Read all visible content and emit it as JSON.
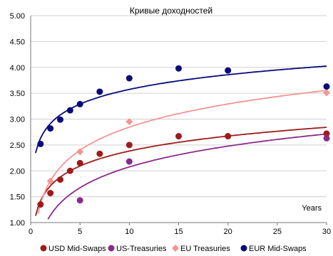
{
  "chart_data": {
    "type": "scatter",
    "title": "Кривые доходностей",
    "xlabel": "Years",
    "ylabel": "",
    "xlim": [
      0,
      30
    ],
    "ylim": [
      1.0,
      5.0
    ],
    "x_ticks": [
      "0",
      "5",
      "10",
      "15",
      "20",
      "25",
      "30"
    ],
    "y_ticks": [
      "1.00",
      "1.50",
      "2.00",
      "2.50",
      "3.00",
      "3.50",
      "4.00",
      "4.50",
      "5.00"
    ],
    "grid": "horizontal",
    "legend_position": "bottom",
    "series": [
      {
        "name": "USD Mid-Swaps",
        "color": "#9e1b1b",
        "marker": "circle",
        "x": [
          1,
          2,
          3,
          4,
          5,
          7,
          10,
          15,
          20,
          30
        ],
        "y": [
          1.35,
          1.57,
          1.83,
          2.0,
          2.15,
          2.33,
          2.5,
          2.67,
          2.67,
          2.72
        ],
        "trend": {
          "type": "log",
          "a": 1.42,
          "b": 0.418
        }
      },
      {
        "name": "US-Treasuries",
        "color": "#8b2a8b",
        "marker": "circle",
        "x": [
          5,
          10,
          30
        ],
        "y": [
          1.43,
          2.18,
          2.63
        ],
        "trend": {
          "type": "log",
          "a": 0.74,
          "b": 0.58
        }
      },
      {
        "name": "EU Treasuries",
        "color": "#f49494",
        "marker": "diamond",
        "x": [
          2,
          5,
          10,
          30
        ],
        "y": [
          1.8,
          2.37,
          2.95,
          3.51
        ],
        "trend": {
          "type": "log",
          "a": 1.36,
          "b": 0.645
        }
      },
      {
        "name": "EUR Mid-Swaps",
        "color": "#0a0a7a",
        "marker": "circle",
        "x": [
          1,
          2,
          3,
          4,
          5,
          7,
          10,
          15,
          20,
          30
        ],
        "y": [
          2.52,
          2.82,
          2.99,
          3.17,
          3.29,
          3.53,
          3.79,
          3.98,
          3.94,
          3.63
        ],
        "trend": {
          "type": "log",
          "a": 2.63,
          "b": 0.41
        }
      }
    ]
  }
}
